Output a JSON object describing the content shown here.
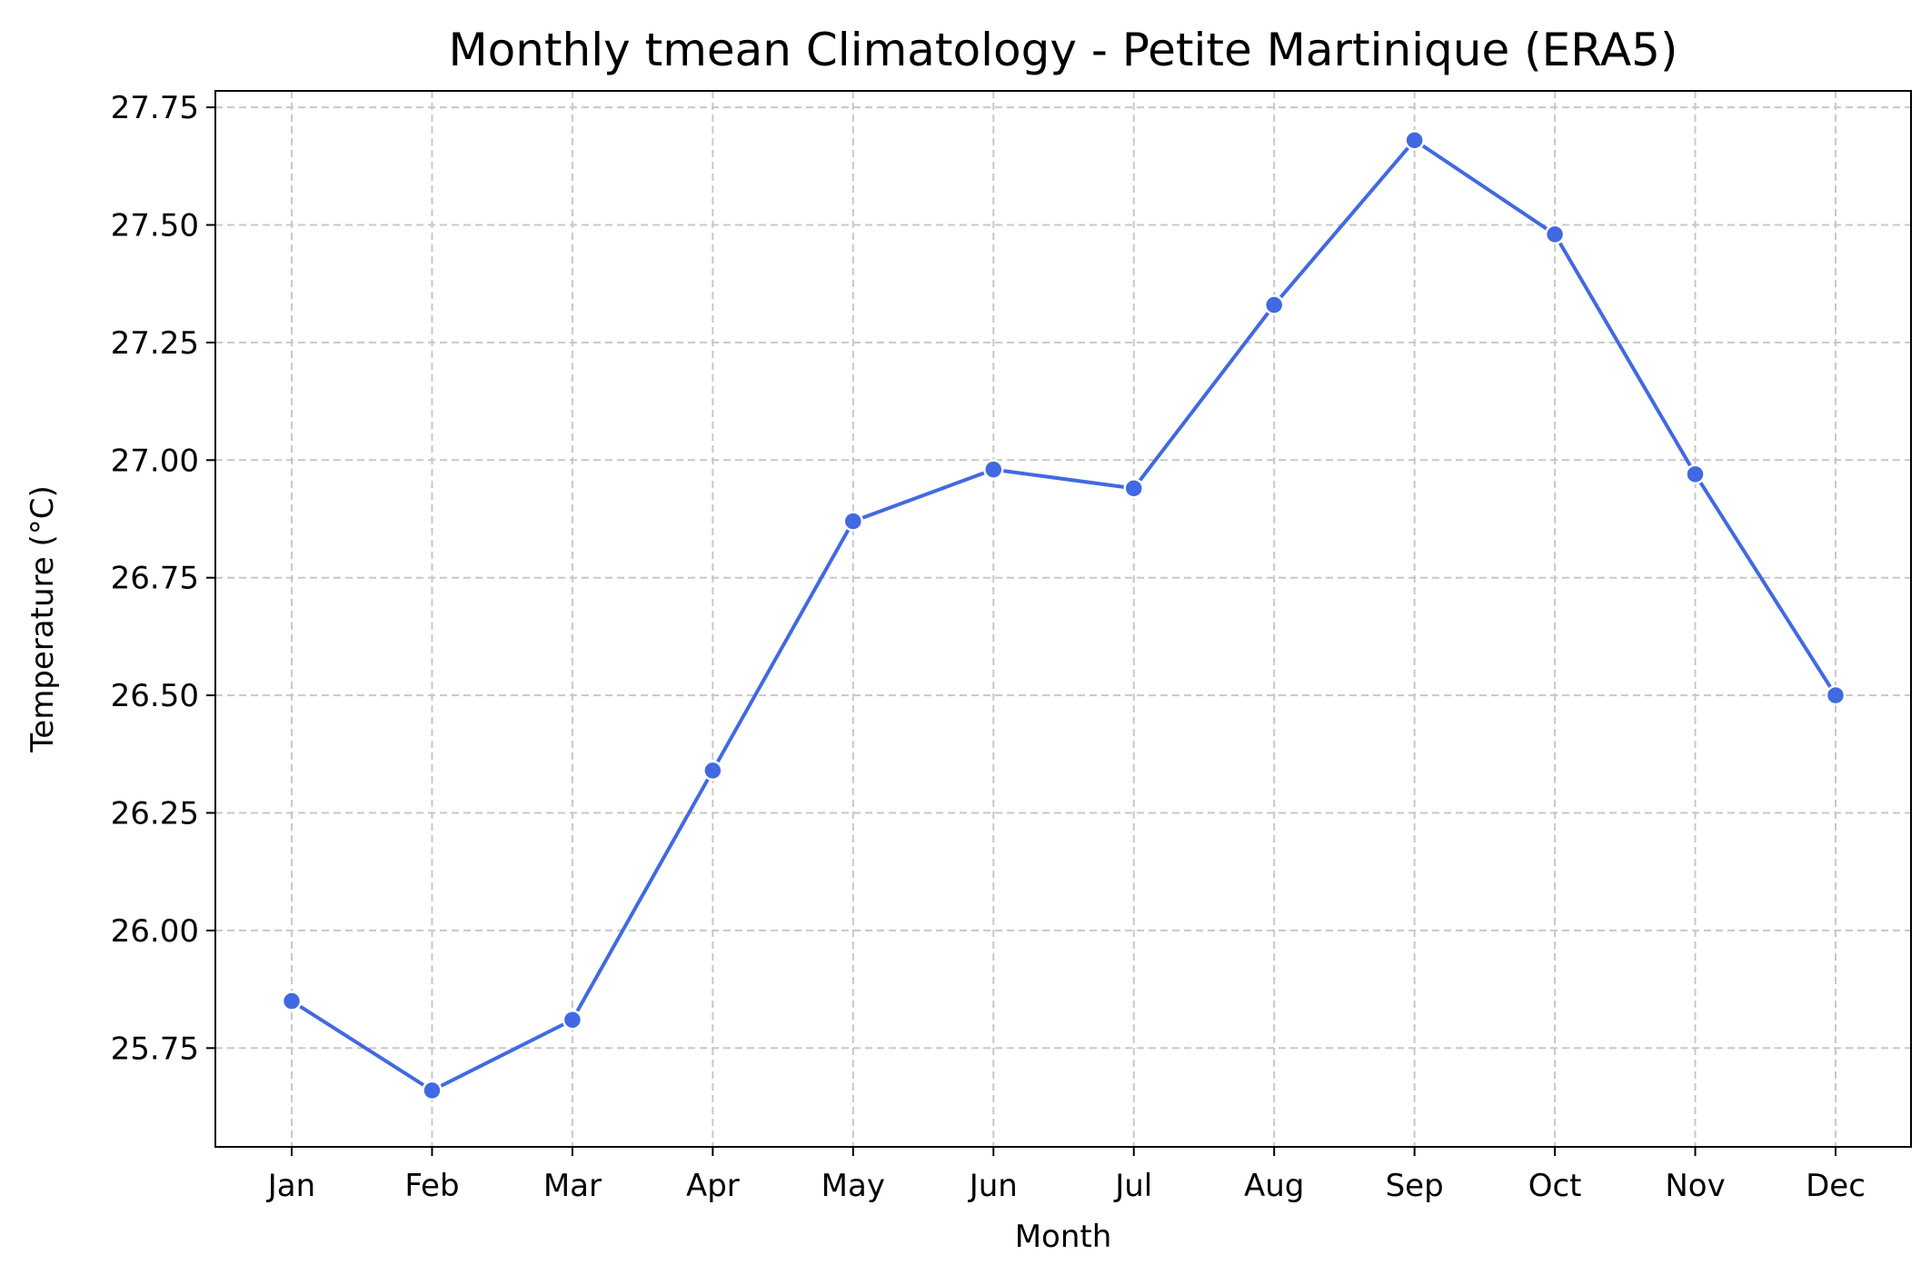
{
  "chart_data": {
    "type": "line",
    "title": "Monthly tmean Climatology - Petite Martinique (ERA5)",
    "xlabel": "Month",
    "ylabel": "Temperature (°C)",
    "categories": [
      "Jan",
      "Feb",
      "Mar",
      "Apr",
      "May",
      "Jun",
      "Jul",
      "Aug",
      "Sep",
      "Oct",
      "Nov",
      "Dec"
    ],
    "series": [
      {
        "values": [
          25.85,
          25.66,
          25.81,
          26.34,
          26.87,
          26.98,
          26.94,
          27.33,
          27.68,
          27.48,
          26.97,
          26.5
        ]
      }
    ],
    "ylim": [
      25.54,
      27.785
    ],
    "yticks": [
      25.75,
      26.0,
      26.25,
      26.5,
      26.75,
      27.0,
      27.25,
      27.5,
      27.75
    ],
    "ytick_labels": [
      "25.75",
      "26.00",
      "26.25",
      "26.50",
      "26.75",
      "27.00",
      "27.25",
      "27.50",
      "27.75"
    ],
    "grid": true,
    "grid_style": "dashed",
    "line_color": "#4169e1",
    "grid_color": "#c8c8c8",
    "legend": "none"
  }
}
